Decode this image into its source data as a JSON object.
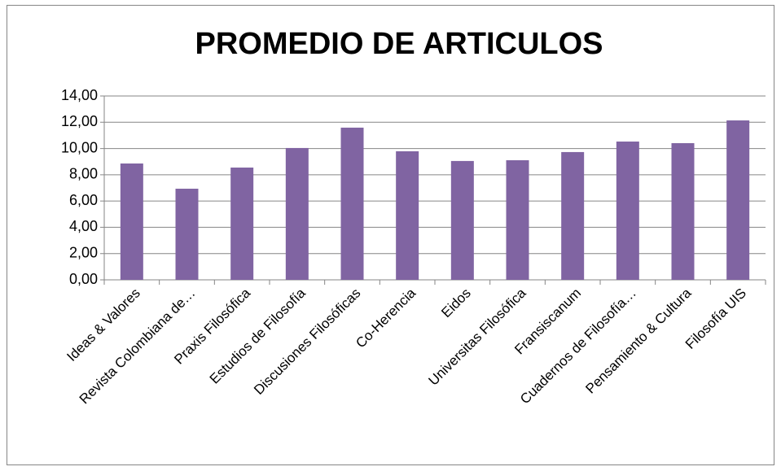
{
  "chart_data": {
    "type": "bar",
    "title": "PROMEDIO DE ARTICULOS",
    "categories": [
      "Ideas & Valores",
      "Revista Colombiana de…",
      "Praxis Filosófica",
      "Estudios de Filosofía",
      "Discusiones Filosóficas",
      "Co-Herencia",
      "Eidos",
      "Universitas Filosófica",
      "Fransiscanum",
      "Cuadernos de Filosofía…",
      "Pensamiento & Cultura",
      "Filosofía UIS"
    ],
    "values": [
      8.86,
      6.94,
      8.55,
      10.04,
      11.59,
      9.79,
      9.05,
      9.11,
      9.73,
      10.53,
      10.41,
      12.14
    ],
    "color": "#8064a2",
    "ylim": [
      0,
      14
    ],
    "yticks": [
      {
        "value": 0,
        "label": "0,00"
      },
      {
        "value": 2,
        "label": "2,00"
      },
      {
        "value": 4,
        "label": "4,00"
      },
      {
        "value": 6,
        "label": "6,00"
      },
      {
        "value": 8,
        "label": "8,00"
      },
      {
        "value": 10,
        "label": "10,00"
      },
      {
        "value": 12,
        "label": "12,00"
      },
      {
        "value": 14,
        "label": "14,00"
      }
    ],
    "grid": true
  }
}
